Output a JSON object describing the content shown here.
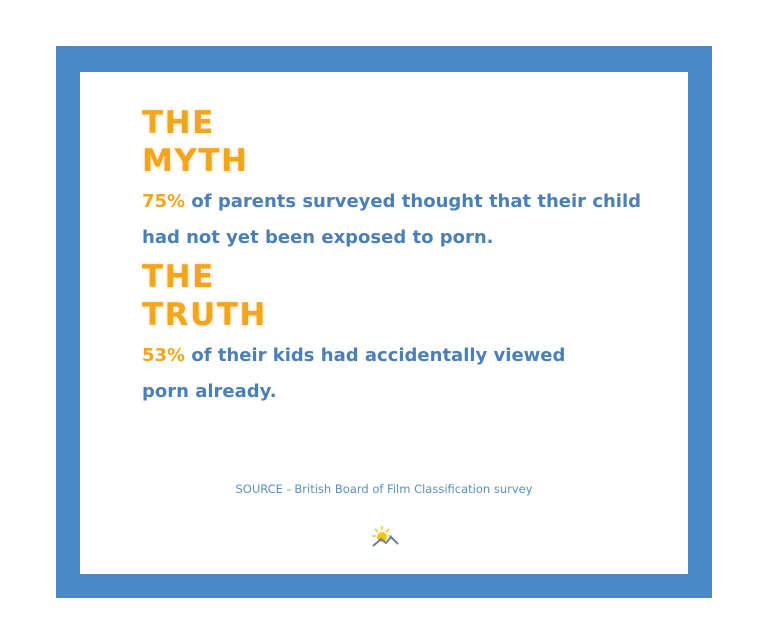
{
  "myth": {
    "heading_line1": "THE",
    "heading_line2": "MYTH",
    "percent": "75%",
    "text": " of parents surveyed thought that their child had not yet been exposed to porn."
  },
  "truth": {
    "heading_line1": "THE",
    "heading_line2": "TRUTH",
    "percent": "53%",
    "text": " of their kids had accidentally viewed porn already."
  },
  "source": "SOURCE - British Board of Film Classification survey",
  "logo_icon": "sun-mountain-icon",
  "colors": {
    "border": "#4a88c8",
    "accent": "#f2a51d",
    "text": "#4a7fb7"
  }
}
